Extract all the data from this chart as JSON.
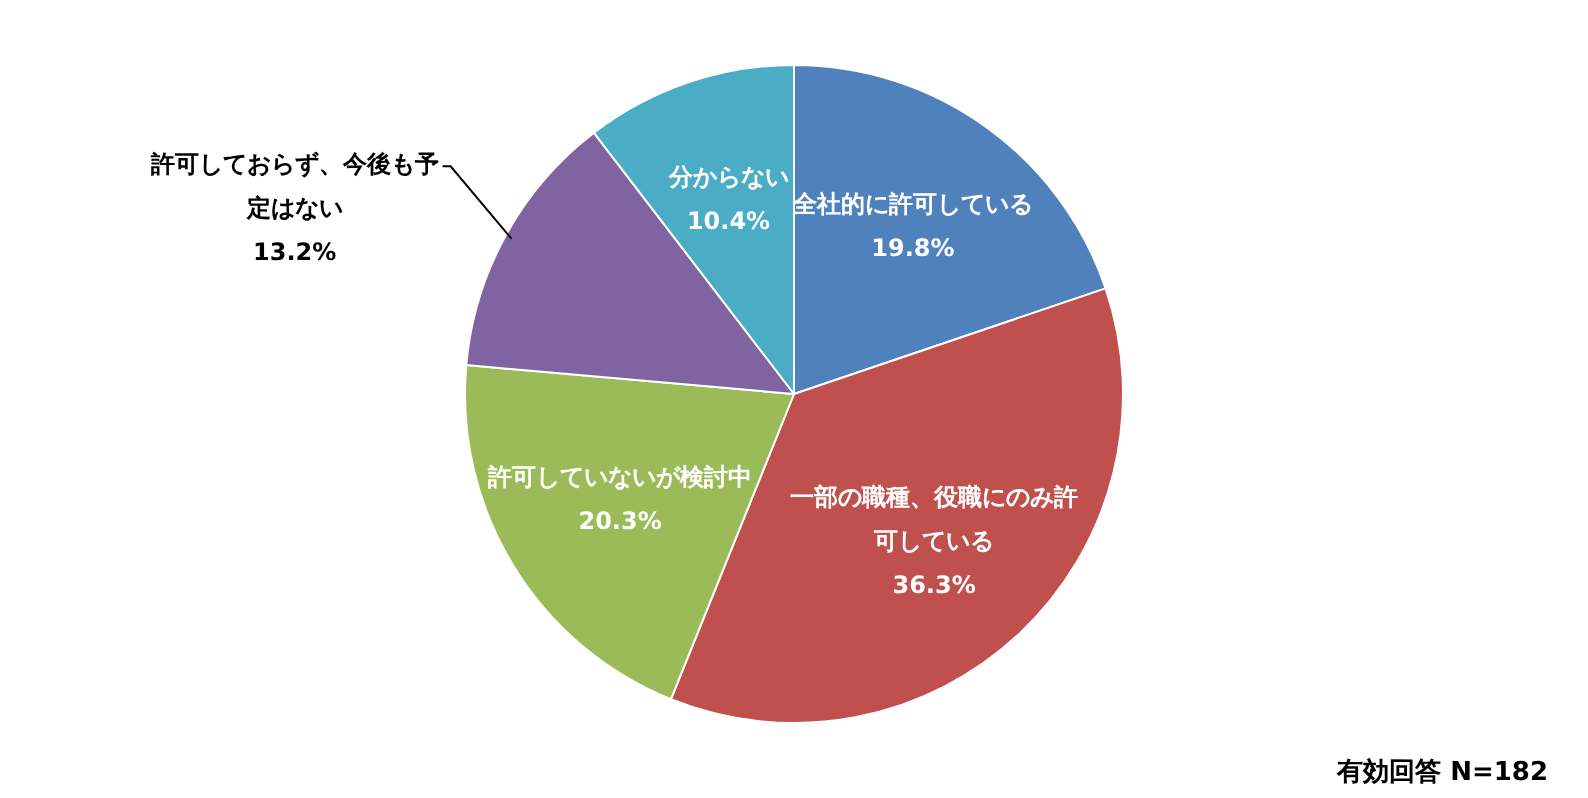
{
  "chart_data": {
    "type": "pie",
    "categories": [
      "全社的に許可している",
      "一部の職種、役職にのみ許可している",
      "許可していないが検討中",
      "許可しておらず、今後も予定はない",
      "分からない"
    ],
    "values": [
      19.8,
      36.3,
      20.3,
      13.2,
      10.4
    ],
    "value_labels": [
      "19.8%",
      "36.3%",
      "20.3%",
      "13.2%",
      "10.4%"
    ],
    "colors": [
      "#4f81bd",
      "#c0504d",
      "#9bbb59",
      "#8064a2",
      "#4bacc6"
    ],
    "legend": false,
    "annotations": [
      "有効回答 N=182"
    ]
  }
}
